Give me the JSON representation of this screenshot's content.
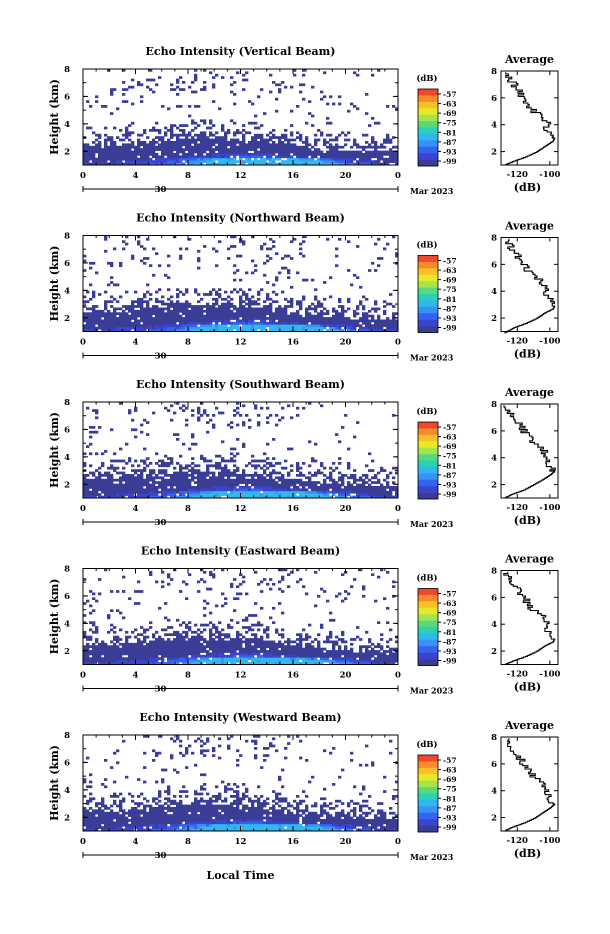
{
  "chart_data": {
    "type": "heatmap",
    "panels": [
      {
        "title": "Echo Intensity (Vertical Beam)",
        "profile": [
          [
            -128,
            1.0
          ],
          [
            -122,
            1.3
          ],
          [
            -115,
            1.6
          ],
          [
            -108,
            2.0
          ],
          [
            -103,
            2.4
          ],
          [
            -98,
            2.8
          ],
          [
            -97,
            3.0
          ]
        ]
      },
      {
        "title": "Echo Intensity (Northward Beam)",
        "profile": [
          [
            -128,
            0.9
          ],
          [
            -122,
            1.3
          ],
          [
            -115,
            1.6
          ],
          [
            -108,
            2.0
          ],
          [
            -103,
            2.4
          ],
          [
            -98,
            2.7
          ],
          [
            -97,
            2.9
          ]
        ]
      },
      {
        "title": "Echo Intensity (Southward Beam)",
        "profile": [
          [
            -128,
            1.0
          ],
          [
            -123,
            1.3
          ],
          [
            -116,
            1.6
          ],
          [
            -110,
            2.0
          ],
          [
            -104,
            2.4
          ],
          [
            -99,
            2.8
          ],
          [
            -97,
            3.0
          ]
        ]
      },
      {
        "title": "Echo Intensity (Eastward Beam)",
        "profile": [
          [
            -128,
            1.0
          ],
          [
            -122,
            1.3
          ],
          [
            -115,
            1.6
          ],
          [
            -108,
            2.0
          ],
          [
            -103,
            2.4
          ],
          [
            -98,
            2.7
          ],
          [
            -97,
            2.9
          ]
        ]
      },
      {
        "title": "Echo Intensity (Westward Beam)",
        "profile": [
          [
            -128,
            1.0
          ],
          [
            -123,
            1.3
          ],
          [
            -116,
            1.6
          ],
          [
            -109,
            2.0
          ],
          [
            -104,
            2.4
          ],
          [
            -99,
            2.8
          ],
          [
            -97,
            3.0
          ]
        ]
      }
    ],
    "ylabel": "Height (km)",
    "y_ticks": [
      "2",
      "4",
      "6",
      "8"
    ],
    "ylim": [
      1,
      8
    ],
    "x_ticks": [
      "0",
      "4",
      "8",
      "12",
      "16",
      "20",
      "0"
    ],
    "xlim": [
      0,
      24
    ],
    "x_day_label": "30",
    "date_label": "Mar 2023",
    "xlabel": "Local Time",
    "colorbar": {
      "unit": "(dB)",
      "ticks": [
        "-57",
        "-63",
        "-69",
        "-75",
        "-81",
        "-87",
        "-93",
        "-99"
      ],
      "colors": [
        "#f0482b",
        "#f88a2a",
        "#f7c125",
        "#e8e829",
        "#a6e54a",
        "#5ad87c",
        "#2cd0b5",
        "#30b7ef",
        "#3891f6",
        "#3463f0",
        "#3a45cf",
        "#3a3d96"
      ]
    },
    "profile_panel": {
      "title": "Average",
      "xlabel": "(dB)",
      "x_ticks": [
        "-120",
        "-100"
      ],
      "y_ticks": [
        "2",
        "4",
        "6",
        "8"
      ]
    }
  }
}
